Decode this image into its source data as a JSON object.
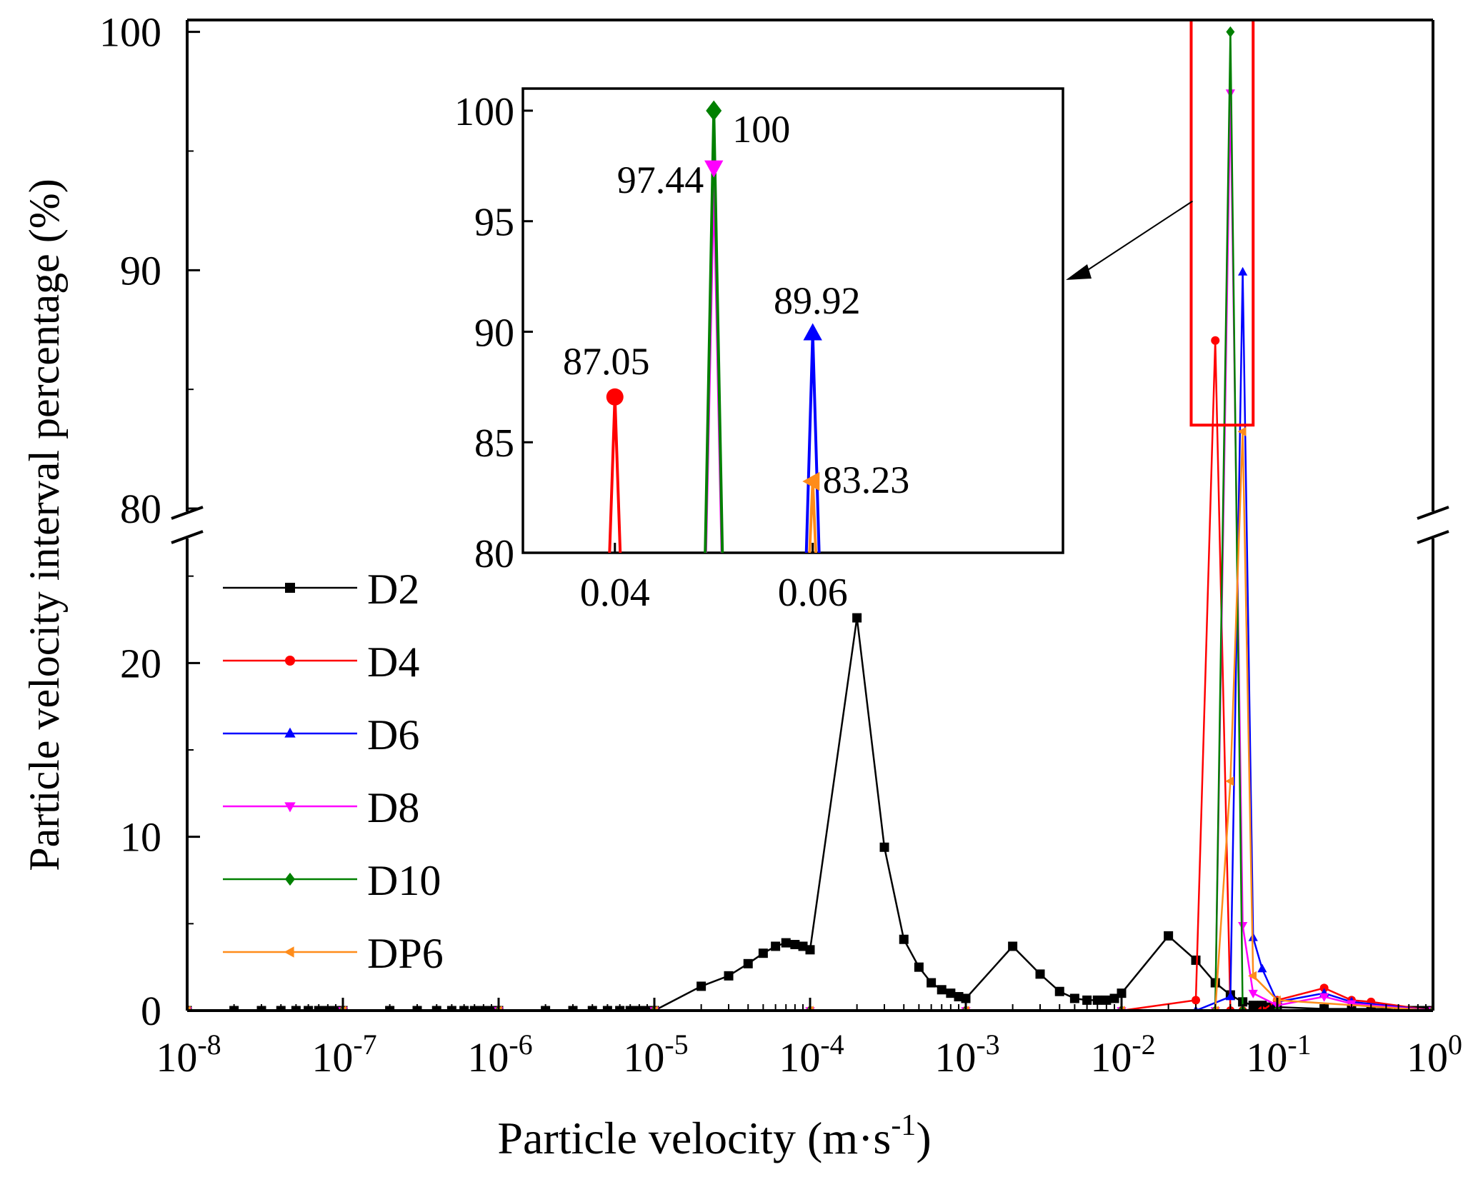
{
  "chart_data": {
    "type": "line",
    "xlabel_main": "Particle velocity",
    "xlabel_unit_pre": "(m·s",
    "xlabel_unit_exp": "-1",
    "xlabel_unit_post": ")",
    "ylabel": "Particle velocity interval percentage (%)",
    "x_scale": "log",
    "xlim": [
      1e-08,
      1
    ],
    "x_ticks": [
      {
        "base": "10",
        "exp": "-8"
      },
      {
        "base": "10",
        "exp": "-7"
      },
      {
        "base": "10",
        "exp": "-6"
      },
      {
        "base": "10",
        "exp": "-5"
      },
      {
        "base": "10",
        "exp": "-4"
      },
      {
        "base": "10",
        "exp": "-3"
      },
      {
        "base": "10",
        "exp": "-2"
      },
      {
        "base": "10",
        "exp": "-1"
      },
      {
        "base": "10",
        "exp": "0"
      }
    ],
    "y_axis_break": true,
    "y_lower_range": [
      0,
      27
    ],
    "y_upper_range": [
      80,
      100.5
    ],
    "y_ticks_lower": [
      "0",
      "10",
      "20"
    ],
    "y_ticks_upper": [
      "80",
      "90",
      "100"
    ],
    "grid": false,
    "legend_position": "left-middle",
    "series": [
      {
        "name": "D2",
        "color": "#000000",
        "marker": "square",
        "x": [
          1e-08,
          2e-08,
          3e-08,
          4e-08,
          5e-08,
          6e-08,
          7e-08,
          8e-08,
          9e-08,
          1e-07,
          2e-07,
          3e-07,
          4e-07,
          5e-07,
          6e-07,
          7e-07,
          8e-07,
          9e-07,
          1e-06,
          2e-06,
          3e-06,
          4e-06,
          5e-06,
          6e-06,
          7e-06,
          8e-06,
          9e-06,
          1e-05,
          2e-05,
          3e-05,
          4e-05,
          5e-05,
          6e-05,
          7e-05,
          8e-05,
          9e-05,
          0.0001,
          0.0002,
          0.0003,
          0.0004,
          0.0005,
          0.0006,
          0.0007,
          0.0008,
          0.0009,
          0.001,
          0.002,
          0.003,
          0.004,
          0.005,
          0.006,
          0.007,
          0.008,
          0.009,
          0.01,
          0.02,
          0.03,
          0.04,
          0.05,
          0.06,
          0.07,
          0.08,
          0.09,
          0.1,
          0.2,
          0.3,
          0.4,
          0.5,
          0.6,
          0.7,
          0.8,
          0.9,
          1
        ],
        "y": [
          0,
          0,
          0,
          0,
          0,
          0,
          0,
          0,
          0,
          0,
          0,
          0,
          0,
          0,
          0,
          0,
          0,
          0,
          0,
          0,
          0,
          0,
          0,
          0,
          0,
          0,
          0,
          0,
          1.4,
          2.0,
          2.7,
          3.3,
          3.7,
          3.9,
          3.8,
          3.7,
          3.5,
          22.6,
          9.4,
          4.1,
          2.5,
          1.6,
          1.2,
          1.0,
          0.8,
          0.7,
          3.7,
          2.1,
          1.1,
          0.7,
          0.6,
          0.6,
          0.6,
          0.7,
          1.0,
          4.3,
          2.9,
          1.6,
          0.9,
          0.5,
          0.3,
          0.3,
          0.2,
          0.2,
          0.1,
          0.1,
          0.1,
          0.1,
          0,
          0,
          0,
          0,
          0
        ]
      },
      {
        "name": "D4",
        "color": "#ff0000",
        "marker": "circle",
        "x": [
          1e-08,
          1e-07,
          1e-06,
          1e-05,
          0.0001,
          0.001,
          0.01,
          0.03,
          0.04,
          0.05,
          0.06,
          0.08,
          0.1,
          0.2,
          0.3,
          0.4,
          1
        ],
        "y": [
          0,
          0,
          0,
          0,
          0,
          0,
          0,
          0.6,
          87.05,
          0,
          0,
          0,
          0.6,
          1.3,
          0.6,
          0.5,
          0
        ]
      },
      {
        "name": "D6",
        "color": "#0000ff",
        "marker": "triangle-up",
        "x": [
          1e-08,
          1e-07,
          1e-06,
          1e-05,
          0.0001,
          0.001,
          0.01,
          0.03,
          0.05,
          0.06,
          0.07,
          0.08,
          0.1,
          0.2,
          0.3,
          1
        ],
        "y": [
          0,
          0,
          0,
          0,
          0,
          0,
          0,
          0,
          0.8,
          89.92,
          4.2,
          2.4,
          0.5,
          1.0,
          0.5,
          0
        ]
      },
      {
        "name": "D8",
        "color": "#ff00ff",
        "marker": "triangle-down",
        "x": [
          1e-08,
          1e-07,
          1e-06,
          1e-05,
          0.0001,
          0.001,
          0.01,
          0.04,
          0.05,
          0.06,
          0.07,
          0.1,
          0.2,
          0.3,
          1
        ],
        "y": [
          0,
          0,
          0,
          0,
          0,
          0,
          0,
          0,
          97.44,
          4.9,
          1.0,
          0.3,
          0.8,
          0.4,
          0
        ]
      },
      {
        "name": "D10",
        "color": "#008000",
        "marker": "diamond",
        "x": [
          1e-08,
          1e-07,
          1e-06,
          1e-05,
          0.0001,
          0.001,
          0.01,
          0.04,
          0.05,
          0.06,
          0.1,
          1
        ],
        "y": [
          0,
          0,
          0,
          0,
          0,
          0,
          0,
          0,
          100,
          0,
          0,
          0
        ]
      },
      {
        "name": "DP6",
        "color": "#ff8c1a",
        "marker": "triangle-left",
        "x": [
          1e-08,
          1e-07,
          1e-06,
          1e-05,
          0.0001,
          0.001,
          0.01,
          0.04,
          0.05,
          0.06,
          0.07,
          0.1,
          1
        ],
        "y": [
          0,
          0,
          0,
          0,
          0,
          0,
          0,
          0,
          13.2,
          83.23,
          2.0,
          0.6,
          0
        ]
      }
    ],
    "zoom_box_xlim": [
      0.028,
      0.07
    ],
    "zoom_box_ylim": [
      83.5,
      100.5
    ],
    "inset": {
      "type": "line",
      "xlim": [
        0.0307,
        0.0853
      ],
      "ylim": [
        80,
        101
      ],
      "x_ticks": [
        "0.04",
        "0.06"
      ],
      "y_ticks": [
        "80",
        "85",
        "90",
        "95",
        "100"
      ],
      "peaks": [
        {
          "series": "D4",
          "color": "#ff0000",
          "marker": "circle",
          "x": 0.04,
          "y": 87.05,
          "label": "87.05"
        },
        {
          "series": "D10",
          "color": "#008000",
          "marker": "diamond",
          "x": 0.05,
          "y": 100,
          "label": "100"
        },
        {
          "series": "D8",
          "color": "#ff00ff",
          "marker": "triangle-down",
          "x": 0.05,
          "y": 97.44,
          "label": "97.44"
        },
        {
          "series": "D6",
          "color": "#0000ff",
          "marker": "triangle-up",
          "x": 0.06,
          "y": 89.92,
          "label": "89.92"
        },
        {
          "series": "DP6",
          "color": "#ff8c1a",
          "marker": "triangle-left",
          "x": 0.06,
          "y": 83.23,
          "label": "83.23"
        }
      ]
    }
  }
}
